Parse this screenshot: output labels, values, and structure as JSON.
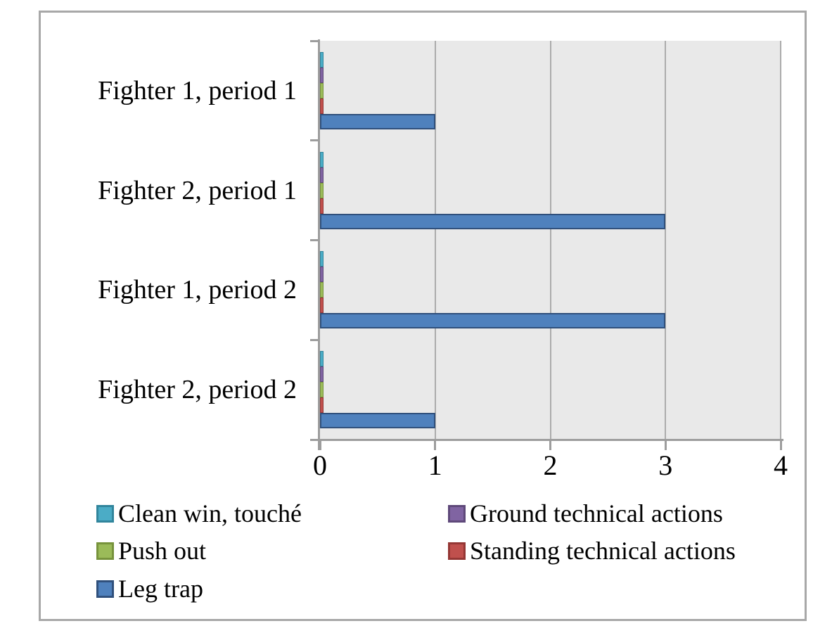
{
  "chart_data": {
    "type": "bar",
    "orientation": "horizontal",
    "title": "",
    "categories": [
      "Fighter 1, period 1",
      "Fighter 2, period 1",
      "Fighter 1, period 2",
      "Fighter 2, period 2"
    ],
    "series": [
      {
        "name": "Clean win, touché",
        "color": "#4bacc6",
        "border": "#31859c",
        "values": [
          0,
          0,
          0,
          0
        ]
      },
      {
        "name": "Ground technical actions",
        "color": "#8064a2",
        "border": "#5f497a",
        "values": [
          0,
          0,
          0,
          0
        ]
      },
      {
        "name": "Push out",
        "color": "#9bbb59",
        "border": "#77933c",
        "values": [
          0,
          0,
          0,
          0
        ]
      },
      {
        "name": "Standing technical actions",
        "color": "#c0504d",
        "border": "#953735",
        "values": [
          0,
          0,
          0,
          0
        ]
      },
      {
        "name": "Leg trap",
        "color": "#4f81bd",
        "border": "#30507c",
        "values": [
          1,
          3,
          3,
          1
        ]
      }
    ],
    "x_ticks": [
      "0",
      "1",
      "2",
      "3",
      "4"
    ],
    "xlim": [
      0,
      4
    ],
    "grid": true,
    "legend_position": "bottom",
    "legend_columns": 2,
    "colors": {
      "plot_bg": "#e9e9e9",
      "grid": "#ababab",
      "axis": "#9d9d9d",
      "frame_border": "#a8a8a8",
      "text": "#000000"
    }
  }
}
